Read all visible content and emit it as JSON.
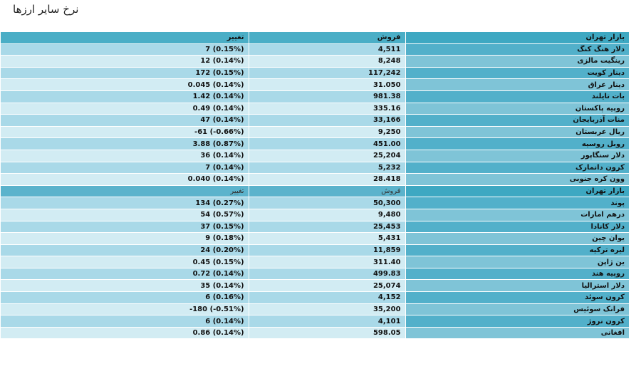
{
  "title": "نرخ سایر ارزها",
  "header1": {
    "market": "بازار تهران",
    "sell": "فروش",
    "change": "تغییر"
  },
  "group1": [
    {
      "name": "دلار هنگ کنگ",
      "sell": "4,511",
      "change": "7 (0.15%)"
    },
    {
      "name": "رینگیت مالزی",
      "sell": "8,248",
      "change": "12 (0.14%)"
    },
    {
      "name": "دینار کویت",
      "sell": "117,242",
      "change": "172 (0.15%)"
    },
    {
      "name": "دینار عراق",
      "sell": "31.050",
      "change": "0.045 (0.14%)"
    },
    {
      "name": "بات تایلند",
      "sell": "981.38",
      "change": "1.42 (0.14%)"
    },
    {
      "name": "روپیه پاکستان",
      "sell": "335.16",
      "change": "0.49 (0.14%)"
    },
    {
      "name": "منات آذربایجان",
      "sell": "33,166",
      "change": "47 (0.14%)"
    },
    {
      "name": "ریال عربستان",
      "sell": "9,250",
      "change": "-61 (-0.66%)"
    },
    {
      "name": "روبل روسیه",
      "sell": "451.00",
      "change": "3.88 (0.87%)"
    },
    {
      "name": "دلار سنگاپور",
      "sell": "25,204",
      "change": "36 (0.14%)"
    },
    {
      "name": "کرون دانمارک",
      "sell": "5,232",
      "change": "7 (0.14%)"
    },
    {
      "name": "وون کره جنوبی",
      "sell": "28.418",
      "change": "0.040 (0.14%)"
    }
  ],
  "header2": {
    "market": "بازار تهران",
    "sell": "فروش",
    "change": "تغییر"
  },
  "group2": [
    {
      "name": "پوند",
      "sell": "50,300",
      "change": "134 (0.27%)"
    },
    {
      "name": "درهم امارات",
      "sell": "9,480",
      "change": "54 (0.57%)"
    },
    {
      "name": "دلار کانادا",
      "sell": "25,453",
      "change": "37 (0.15%)"
    },
    {
      "name": "یوان چین",
      "sell": "5,431",
      "change": "9 (0.18%)"
    },
    {
      "name": "لیره ترکیه",
      "sell": "11,859",
      "change": "24 (0.20%)"
    },
    {
      "name": "ین ژاپن",
      "sell": "311.40",
      "change": "0.45 (0.15%)"
    },
    {
      "name": "روپیه هند",
      "sell": "499.83",
      "change": "0.72 (0.14%)"
    },
    {
      "name": "دلار استرالیا",
      "sell": "25,074",
      "change": "35 (0.14%)"
    },
    {
      "name": "کرون سوئد",
      "sell": "4,152",
      "change": "6 (0.16%)"
    },
    {
      "name": "فرانک سوئیس",
      "sell": "35,200",
      "change": "-180 (-0.51%)"
    },
    {
      "name": "کرون نروژ",
      "sell": "4,101",
      "change": "6 (0.14%)"
    },
    {
      "name": "افغانی",
      "sell": "598.05",
      "change": "0.86 (0.14%)"
    }
  ]
}
